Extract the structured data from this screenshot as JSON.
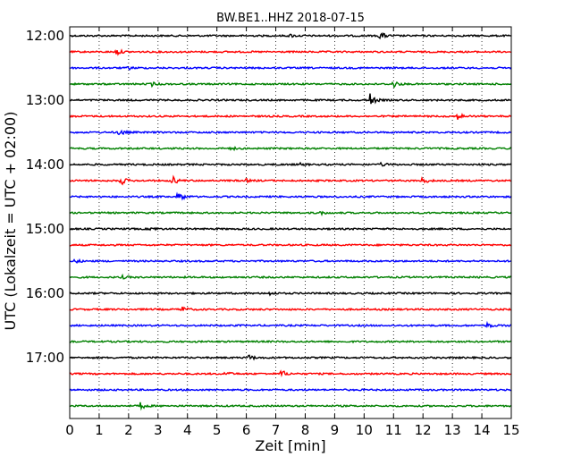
{
  "chart_data": {
    "type": "line",
    "title": "BW.BE1..HHZ 2018-07-15",
    "xlabel": "Zeit  [min]",
    "ylabel": "UTC (Lokalzeit = UTC + 02:00)",
    "xlim": [
      0,
      15
    ],
    "x_ticks": [
      "0",
      "1",
      "2",
      "3",
      "4",
      "5",
      "6",
      "7",
      "8",
      "9",
      "10",
      "11",
      "12",
      "13",
      "14",
      "15"
    ],
    "y_ticks": [
      "12:00",
      "13:00",
      "14:00",
      "15:00",
      "16:00",
      "17:00"
    ],
    "grid": true,
    "trace_minutes": 15,
    "colors": [
      "#000000",
      "#ff0000",
      "#0000ff",
      "#008000"
    ],
    "traces": [
      {
        "start": "12:00",
        "events": [
          {
            "t": 10.55,
            "a": 5
          },
          {
            "t": 7.5,
            "a": 1.5
          }
        ]
      },
      {
        "start": "12:15",
        "events": [
          {
            "t": 1.6,
            "a": 3.5
          }
        ]
      },
      {
        "start": "12:30",
        "events": [
          {
            "t": 2.0,
            "a": 1.5
          }
        ]
      },
      {
        "start": "12:45",
        "events": [
          {
            "t": 2.8,
            "a": 2
          },
          {
            "t": 11.0,
            "a": 4
          }
        ]
      },
      {
        "start": "13:00",
        "events": [
          {
            "t": 10.2,
            "a": 8
          }
        ]
      },
      {
        "start": "13:15",
        "events": [
          {
            "t": 13.2,
            "a": 4
          }
        ]
      },
      {
        "start": "13:30",
        "events": [
          {
            "t": 1.7,
            "a": 4
          }
        ]
      },
      {
        "start": "13:45",
        "events": [
          {
            "t": 5.5,
            "a": 1.5
          }
        ]
      },
      {
        "start": "14:00",
        "events": [
          {
            "t": 7.8,
            "a": 1.5
          },
          {
            "t": 10.6,
            "a": 2
          }
        ]
      },
      {
        "start": "14:15",
        "events": [
          {
            "t": 1.75,
            "a": 5
          },
          {
            "t": 3.5,
            "a": 5
          },
          {
            "t": 6.0,
            "a": 1.5
          },
          {
            "t": 12.0,
            "a": 4
          }
        ]
      },
      {
        "start": "14:30",
        "events": [
          {
            "t": 3.7,
            "a": 7
          }
        ]
      },
      {
        "start": "14:45",
        "events": [
          {
            "t": 8.5,
            "a": 2
          }
        ]
      },
      {
        "start": "15:00",
        "events": [
          {
            "t": 2.8,
            "a": 2
          }
        ]
      },
      {
        "start": "15:15",
        "events": []
      },
      {
        "start": "15:30",
        "events": [
          {
            "t": 0.2,
            "a": 2
          }
        ]
      },
      {
        "start": "15:45",
        "events": [
          {
            "t": 1.8,
            "a": 1.5
          }
        ]
      },
      {
        "start": "16:00",
        "events": [
          {
            "t": 6.8,
            "a": 1.5
          }
        ]
      },
      {
        "start": "16:15",
        "events": [
          {
            "t": 3.8,
            "a": 4
          }
        ]
      },
      {
        "start": "16:30",
        "events": [
          {
            "t": 14.2,
            "a": 3
          }
        ]
      },
      {
        "start": "16:45",
        "events": []
      },
      {
        "start": "17:00",
        "events": [
          {
            "t": 6.1,
            "a": 3
          }
        ]
      },
      {
        "start": "17:15",
        "events": [
          {
            "t": 5.3,
            "a": 2.5
          },
          {
            "t": 7.2,
            "a": 4
          }
        ]
      },
      {
        "start": "17:30",
        "events": []
      },
      {
        "start": "17:45",
        "events": [
          {
            "t": 2.4,
            "a": 4
          }
        ]
      }
    ]
  }
}
